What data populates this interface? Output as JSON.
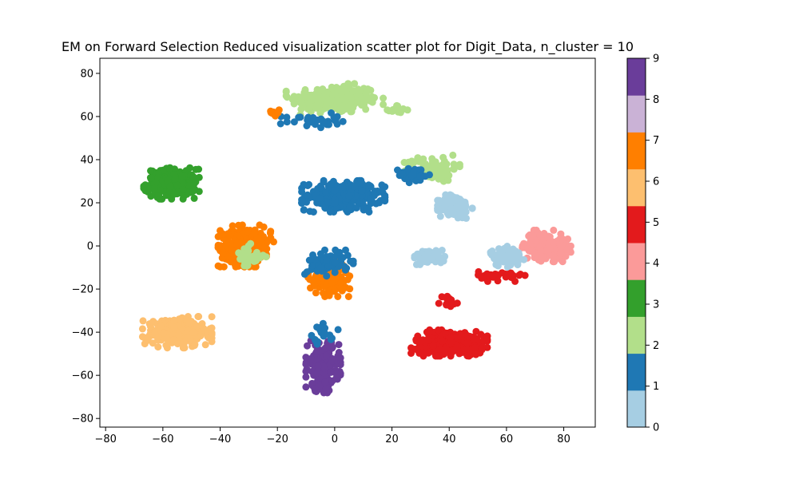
{
  "chart_data": {
    "type": "scatter",
    "title": "EM on Forward Selection Reduced visualization scatter plot for Digit_Data, n_cluster = 10",
    "xlabel": "",
    "ylabel": "",
    "xlim": [
      -82,
      91
    ],
    "ylim": [
      -84,
      87
    ],
    "xticks": [
      -80,
      -60,
      -40,
      -20,
      0,
      20,
      40,
      60,
      80
    ],
    "yticks": [
      -80,
      -60,
      -40,
      -20,
      0,
      20,
      40,
      60,
      80
    ],
    "xtick_labels": [
      "−80",
      "−60",
      "−40",
      "−20",
      "0",
      "20",
      "40",
      "60",
      "80"
    ],
    "ytick_labels": [
      "−80",
      "−60",
      "−40",
      "−20",
      "0",
      "20",
      "40",
      "60",
      "80"
    ],
    "grid": false,
    "colorbar": {
      "range": [
        0,
        9
      ],
      "ticks": [
        0,
        1,
        2,
        3,
        4,
        5,
        6,
        7,
        8,
        9
      ],
      "tick_labels": [
        "0",
        "1",
        "2",
        "3",
        "4",
        "5",
        "6",
        "7",
        "8",
        "9"
      ],
      "colors": [
        "#a6cee3",
        "#1f78b4",
        "#b2df8a",
        "#33a02c",
        "#fb9a99",
        "#e31a1c",
        "#fdbf6f",
        "#ff7f00",
        "#cab2d6",
        "#6a3d9a"
      ]
    },
    "clusters": [
      {
        "label": 2,
        "center": [
          0,
          68
        ],
        "spread": [
          14,
          6
        ],
        "count": 240
      },
      {
        "label": 1,
        "center": [
          -8,
          58
        ],
        "spread": [
          9,
          3
        ],
        "count": 35
      },
      {
        "label": 7,
        "center": [
          -20,
          62
        ],
        "spread": [
          2,
          2
        ],
        "count": 10
      },
      {
        "label": 2,
        "center": [
          22,
          63
        ],
        "spread": [
          3,
          2
        ],
        "count": 15
      },
      {
        "label": 3,
        "center": [
          -57,
          29
        ],
        "spread": [
          8,
          6
        ],
        "count": 230
      },
      {
        "label": 1,
        "center": [
          3,
          23
        ],
        "spread": [
          12,
          6
        ],
        "count": 280
      },
      {
        "label": 2,
        "center": [
          34,
          36
        ],
        "spread": [
          8,
          5
        ],
        "count": 90
      },
      {
        "label": 1,
        "center": [
          28,
          33
        ],
        "spread": [
          5,
          3
        ],
        "count": 40
      },
      {
        "label": 0,
        "center": [
          42,
          18
        ],
        "spread": [
          5,
          5
        ],
        "count": 120
      },
      {
        "label": 7,
        "center": [
          -31,
          0
        ],
        "spread": [
          8,
          8
        ],
        "count": 260
      },
      {
        "label": 2,
        "center": [
          -30,
          -5
        ],
        "spread": [
          5,
          5
        ],
        "count": 30
      },
      {
        "label": 7,
        "center": [
          -2,
          -15
        ],
        "spread": [
          6,
          7
        ],
        "count": 150
      },
      {
        "label": 1,
        "center": [
          -2,
          -8
        ],
        "spread": [
          7,
          5
        ],
        "count": 70
      },
      {
        "label": 0,
        "center": [
          33,
          -5
        ],
        "spread": [
          5,
          3
        ],
        "count": 60
      },
      {
        "label": 4,
        "center": [
          74,
          0
        ],
        "spread": [
          7,
          6
        ],
        "count": 150
      },
      {
        "label": 0,
        "center": [
          60,
          -5
        ],
        "spread": [
          5,
          4
        ],
        "count": 80
      },
      {
        "label": 5,
        "center": [
          58,
          -14
        ],
        "spread": [
          7,
          2
        ],
        "count": 40
      },
      {
        "label": 5,
        "center": [
          40,
          -45
        ],
        "spread": [
          11,
          5
        ],
        "count": 280
      },
      {
        "label": 5,
        "center": [
          40,
          -26
        ],
        "spread": [
          3,
          3
        ],
        "count": 15
      },
      {
        "label": 6,
        "center": [
          -55,
          -40
        ],
        "spread": [
          10,
          6
        ],
        "count": 260
      },
      {
        "label": 9,
        "center": [
          -4,
          -56
        ],
        "spread": [
          5,
          10
        ],
        "count": 220
      },
      {
        "label": 1,
        "center": [
          -5,
          -42
        ],
        "spread": [
          6,
          5
        ],
        "count": 20
      }
    ]
  }
}
